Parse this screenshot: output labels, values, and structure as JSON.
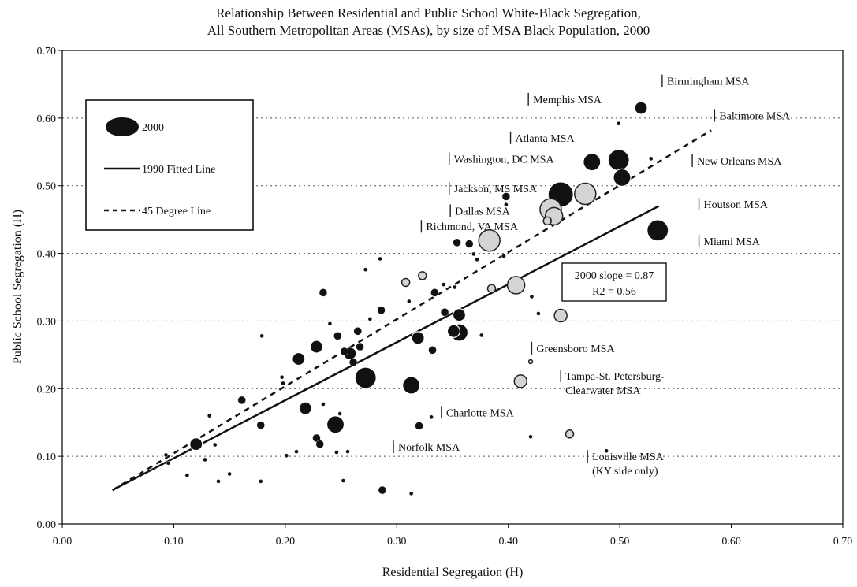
{
  "chart_data": {
    "type": "scatter",
    "title": "Relationship Between Residential and Public School White-Black Segregation,",
    "subtitle": "All Southern Metropolitan Areas (MSAs), by size of MSA Black Population, 2000",
    "xlabel": "Residential Segregation (H)",
    "ylabel": "Public School Segregation (H)",
    "xlim": [
      0,
      0.7
    ],
    "ylim": [
      0,
      0.7
    ],
    "x_ticks": [
      "0.00",
      "0.10",
      "0.20",
      "0.30",
      "0.40",
      "0.50",
      "0.60",
      "0.70"
    ],
    "y_ticks": [
      "0.00",
      "0.10",
      "0.20",
      "0.30",
      "0.40",
      "0.50",
      "0.60",
      "0.70"
    ],
    "grid": "horizontal dotted",
    "legend": {
      "placement": "top-left",
      "entries": [
        {
          "label": "2000",
          "style": "bubble"
        },
        {
          "label": "1990 Fitted Line",
          "style": "solid"
        },
        {
          "label": "45 Degree Line",
          "style": "dashed"
        }
      ]
    },
    "annotation": {
      "line1": "2000 slope = 0.87",
      "line2": "R2 = 0.56"
    },
    "fitted_line_1990": {
      "x": [
        0.045,
        0.535
      ],
      "y": [
        0.05,
        0.47
      ]
    },
    "degree45_line": {
      "x": [
        0.045,
        0.582
      ],
      "y": [
        0.05,
        0.582
      ]
    },
    "series": [
      {
        "points": [
          {
            "x": 0.519,
            "y": 0.615,
            "size": 3,
            "style": "solid"
          },
          {
            "x": 0.499,
            "y": 0.592,
            "size": 1,
            "style": "solid"
          },
          {
            "x": 0.475,
            "y": 0.535,
            "size": 4,
            "style": "solid"
          },
          {
            "x": 0.499,
            "y": 0.538,
            "size": 5,
            "style": "solid"
          },
          {
            "x": 0.502,
            "y": 0.512,
            "size": 4,
            "style": "solid"
          },
          {
            "x": 0.528,
            "y": 0.54,
            "size": 1,
            "style": "solid"
          },
          {
            "x": 0.447,
            "y": 0.487,
            "size": 6,
            "style": "solid"
          },
          {
            "x": 0.469,
            "y": 0.488,
            "size": 5,
            "style": "light"
          },
          {
            "x": 0.438,
            "y": 0.465,
            "size": 5,
            "style": "light"
          },
          {
            "x": 0.441,
            "y": 0.455,
            "size": 4,
            "style": "light"
          },
          {
            "x": 0.435,
            "y": 0.448,
            "size": 2,
            "style": "light"
          },
          {
            "x": 0.398,
            "y": 0.484,
            "size": 2,
            "style": "solid"
          },
          {
            "x": 0.398,
            "y": 0.472,
            "size": 1,
            "style": "solid"
          },
          {
            "x": 0.383,
            "y": 0.419,
            "size": 5,
            "style": "light"
          },
          {
            "x": 0.354,
            "y": 0.416,
            "size": 2,
            "style": "solid"
          },
          {
            "x": 0.365,
            "y": 0.414,
            "size": 2,
            "style": "solid"
          },
          {
            "x": 0.534,
            "y": 0.434,
            "size": 5,
            "style": "solid"
          },
          {
            "x": 0.407,
            "y": 0.353,
            "size": 4,
            "style": "light"
          },
          {
            "x": 0.385,
            "y": 0.348,
            "size": 2,
            "style": "light"
          },
          {
            "x": 0.447,
            "y": 0.308,
            "size": 3,
            "style": "light"
          },
          {
            "x": 0.411,
            "y": 0.211,
            "size": 3,
            "style": "light"
          },
          {
            "x": 0.455,
            "y": 0.133,
            "size": 2,
            "style": "light"
          },
          {
            "x": 0.42,
            "y": 0.24,
            "size": 1,
            "style": "light"
          },
          {
            "x": 0.356,
            "y": 0.283,
            "size": 4,
            "style": "solid"
          },
          {
            "x": 0.351,
            "y": 0.285,
            "size": 3,
            "style": "solid"
          },
          {
            "x": 0.356,
            "y": 0.309,
            "size": 3,
            "style": "solid"
          },
          {
            "x": 0.343,
            "y": 0.313,
            "size": 2,
            "style": "solid"
          },
          {
            "x": 0.272,
            "y": 0.216,
            "size": 5,
            "style": "solid"
          },
          {
            "x": 0.313,
            "y": 0.205,
            "size": 4,
            "style": "solid"
          },
          {
            "x": 0.245,
            "y": 0.147,
            "size": 4,
            "style": "solid"
          },
          {
            "x": 0.319,
            "y": 0.275,
            "size": 3,
            "style": "solid"
          },
          {
            "x": 0.286,
            "y": 0.316,
            "size": 2,
            "style": "solid"
          },
          {
            "x": 0.258,
            "y": 0.252,
            "size": 3,
            "style": "solid"
          },
          {
            "x": 0.261,
            "y": 0.239,
            "size": 2,
            "style": "solid"
          },
          {
            "x": 0.267,
            "y": 0.262,
            "size": 2,
            "style": "solid"
          },
          {
            "x": 0.265,
            "y": 0.285,
            "size": 2,
            "style": "solid"
          },
          {
            "x": 0.228,
            "y": 0.262,
            "size": 3,
            "style": "solid"
          },
          {
            "x": 0.212,
            "y": 0.244,
            "size": 3,
            "style": "solid"
          },
          {
            "x": 0.218,
            "y": 0.171,
            "size": 3,
            "style": "solid"
          },
          {
            "x": 0.247,
            "y": 0.278,
            "size": 2,
            "style": "solid"
          },
          {
            "x": 0.253,
            "y": 0.255,
            "size": 2,
            "style": "solid"
          },
          {
            "x": 0.24,
            "y": 0.296,
            "size": 1,
            "style": "solid"
          },
          {
            "x": 0.276,
            "y": 0.303,
            "size": 1,
            "style": "solid"
          },
          {
            "x": 0.334,
            "y": 0.342,
            "size": 2,
            "style": "solid"
          },
          {
            "x": 0.332,
            "y": 0.257,
            "size": 2,
            "style": "solid"
          },
          {
            "x": 0.311,
            "y": 0.329,
            "size": 1,
            "style": "solid"
          },
          {
            "x": 0.308,
            "y": 0.357,
            "size": 2,
            "style": "light"
          },
          {
            "x": 0.323,
            "y": 0.367,
            "size": 2,
            "style": "light"
          },
          {
            "x": 0.32,
            "y": 0.145,
            "size": 2,
            "style": "solid"
          },
          {
            "x": 0.331,
            "y": 0.158,
            "size": 1,
            "style": "solid"
          },
          {
            "x": 0.234,
            "y": 0.342,
            "size": 2,
            "style": "solid"
          },
          {
            "x": 0.228,
            "y": 0.127,
            "size": 2,
            "style": "solid"
          },
          {
            "x": 0.231,
            "y": 0.118,
            "size": 2,
            "style": "solid"
          },
          {
            "x": 0.246,
            "y": 0.106,
            "size": 1,
            "style": "solid"
          },
          {
            "x": 0.252,
            "y": 0.064,
            "size": 1,
            "style": "solid"
          },
          {
            "x": 0.287,
            "y": 0.05,
            "size": 2,
            "style": "solid"
          },
          {
            "x": 0.313,
            "y": 0.045,
            "size": 1,
            "style": "solid"
          },
          {
            "x": 0.256,
            "y": 0.107,
            "size": 1,
            "style": "solid"
          },
          {
            "x": 0.21,
            "y": 0.107,
            "size": 1,
            "style": "solid"
          },
          {
            "x": 0.201,
            "y": 0.101,
            "size": 1,
            "style": "solid"
          },
          {
            "x": 0.198,
            "y": 0.208,
            "size": 1,
            "style": "solid"
          },
          {
            "x": 0.197,
            "y": 0.217,
            "size": 1,
            "style": "solid"
          },
          {
            "x": 0.161,
            "y": 0.183,
            "size": 2,
            "style": "solid"
          },
          {
            "x": 0.178,
            "y": 0.146,
            "size": 2,
            "style": "solid"
          },
          {
            "x": 0.179,
            "y": 0.278,
            "size": 1,
            "style": "solid"
          },
          {
            "x": 0.178,
            "y": 0.063,
            "size": 1,
            "style": "solid"
          },
          {
            "x": 0.15,
            "y": 0.074,
            "size": 1,
            "style": "solid"
          },
          {
            "x": 0.14,
            "y": 0.063,
            "size": 1,
            "style": "solid"
          },
          {
            "x": 0.137,
            "y": 0.117,
            "size": 1,
            "style": "solid"
          },
          {
            "x": 0.132,
            "y": 0.16,
            "size": 1,
            "style": "solid"
          },
          {
            "x": 0.128,
            "y": 0.095,
            "size": 1,
            "style": "solid"
          },
          {
            "x": 0.12,
            "y": 0.118,
            "size": 3,
            "style": "solid"
          },
          {
            "x": 0.112,
            "y": 0.072,
            "size": 1,
            "style": "solid"
          },
          {
            "x": 0.093,
            "y": 0.102,
            "size": 1,
            "style": "solid"
          },
          {
            "x": 0.095,
            "y": 0.09,
            "size": 1,
            "style": "solid"
          },
          {
            "x": 0.234,
            "y": 0.177,
            "size": 1,
            "style": "solid"
          },
          {
            "x": 0.249,
            "y": 0.163,
            "size": 1,
            "style": "solid"
          },
          {
            "x": 0.352,
            "y": 0.35,
            "size": 1,
            "style": "solid"
          },
          {
            "x": 0.372,
            "y": 0.391,
            "size": 1,
            "style": "solid"
          },
          {
            "x": 0.369,
            "y": 0.399,
            "size": 1,
            "style": "solid"
          },
          {
            "x": 0.396,
            "y": 0.396,
            "size": 1,
            "style": "solid"
          },
          {
            "x": 0.342,
            "y": 0.354,
            "size": 1,
            "style": "solid"
          },
          {
            "x": 0.42,
            "y": 0.129,
            "size": 1,
            "style": "solid"
          },
          {
            "x": 0.421,
            "y": 0.336,
            "size": 1,
            "style": "solid"
          },
          {
            "x": 0.427,
            "y": 0.311,
            "size": 1,
            "style": "solid"
          },
          {
            "x": 0.376,
            "y": 0.279,
            "size": 1,
            "style": "solid"
          },
          {
            "x": 0.285,
            "y": 0.392,
            "size": 1,
            "style": "solid"
          },
          {
            "x": 0.272,
            "y": 0.376,
            "size": 1,
            "style": "solid"
          },
          {
            "x": 0.488,
            "y": 0.108,
            "size": 1,
            "style": "solid"
          }
        ]
      }
    ],
    "annotations": [
      {
        "lines": [
          "Birmingham MSA"
        ],
        "x": 0.538,
        "y": 0.655
      },
      {
        "lines": [
          "Memphis MSA"
        ],
        "x": 0.418,
        "y": 0.628
      },
      {
        "lines": [
          "Baltimore MSA"
        ],
        "x": 0.585,
        "y": 0.604
      },
      {
        "lines": [
          "Atlanta MSA"
        ],
        "x": 0.402,
        "y": 0.571
      },
      {
        "lines": [
          "Washington, DC MSA"
        ],
        "x": 0.347,
        "y": 0.54
      },
      {
        "lines": [
          "New Orleans MSA"
        ],
        "x": 0.565,
        "y": 0.537
      },
      {
        "lines": [
          "Jackson, MS MSA"
        ],
        "x": 0.347,
        "y": 0.496
      },
      {
        "lines": [
          "Houtson MSA"
        ],
        "x": 0.571,
        "y": 0.473
      },
      {
        "lines": [
          "Dallas MSA"
        ],
        "x": 0.348,
        "y": 0.463
      },
      {
        "lines": [
          "Richmond, VA MSA"
        ],
        "x": 0.322,
        "y": 0.44
      },
      {
        "lines": [
          "Miami MSA"
        ],
        "x": 0.571,
        "y": 0.418
      },
      {
        "lines": [
          "Greensboro MSA"
        ],
        "x": 0.421,
        "y": 0.26
      },
      {
        "lines": [
          "Tampa-St. Petersburg-",
          "Clearwater MSA"
        ],
        "x": 0.447,
        "y": 0.219
      },
      {
        "lines": [
          "Charlotte MSA"
        ],
        "x": 0.34,
        "y": 0.165
      },
      {
        "lines": [
          "Norfolk MSA"
        ],
        "x": 0.297,
        "y": 0.114
      },
      {
        "lines": [
          "Louisville MSA",
          "(KY side only)"
        ],
        "x": 0.471,
        "y": 0.1
      }
    ]
  }
}
